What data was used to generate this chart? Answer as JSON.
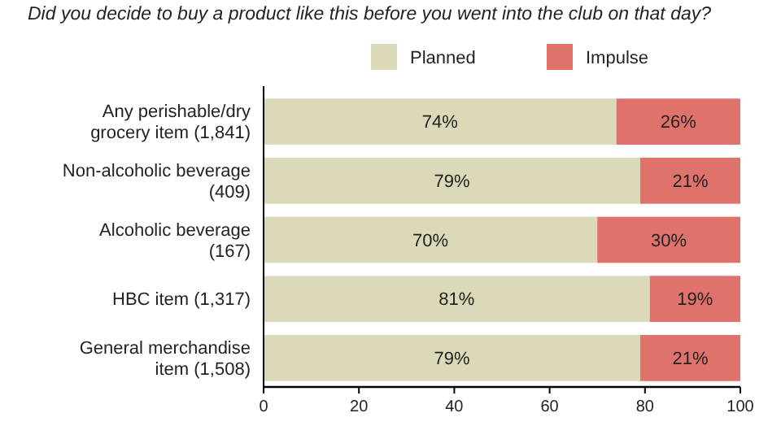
{
  "chart_data": {
    "type": "bar",
    "orientation": "horizontal",
    "stacked": true,
    "title": "Did you decide to buy a product like this before you went into the club on that day?",
    "categories": [
      "Any perishable/dry grocery item (1,841)",
      "Non-alcoholic beverage (409)",
      "Alcoholic beverage (167)",
      "HBC item (1,317)",
      "General merchandise item (1,508)"
    ],
    "series": [
      {
        "name": "Planned",
        "color": "#dcd9b9",
        "values": [
          74,
          79,
          70,
          81,
          79
        ],
        "value_labels": [
          "74%",
          "79%",
          "70%",
          "81%",
          "79%"
        ]
      },
      {
        "name": "Impulse",
        "color": "#e0726c",
        "values": [
          26,
          21,
          30,
          19,
          21
        ],
        "value_labels": [
          "26%",
          "21%",
          "30%",
          "19%",
          "21%"
        ]
      }
    ],
    "xlim": [
      0,
      100
    ],
    "xticks": [
      0,
      20,
      40,
      60,
      80,
      100
    ],
    "legend": "top right",
    "grid": false
  }
}
